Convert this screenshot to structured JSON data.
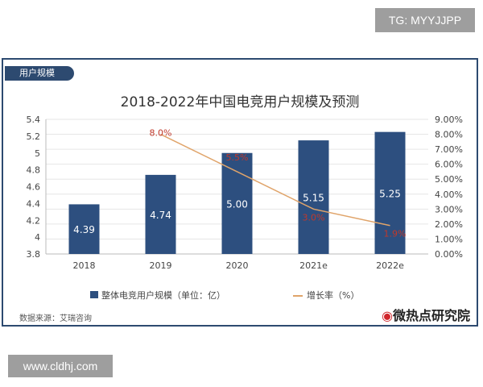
{
  "watermark_top": "TG: MYYJJPP",
  "watermark_bottom": "www.cldhj.com",
  "section_tag": "用户规模",
  "source": "数据来源：艾瑞咨询",
  "logo": "微热点研究院",
  "chart_data": {
    "type": "bar+line",
    "title": "2018-2022年中国电竞用户规模及预测",
    "categories": [
      "2018",
      "2019",
      "2020",
      "2021e",
      "2022e"
    ],
    "series": [
      {
        "name": "整体电竞用户规模（单位：亿）",
        "type": "bar",
        "axis": "left",
        "values": [
          4.39,
          4.74,
          5.0,
          5.15,
          5.25
        ],
        "labels": [
          "4.39",
          "4.74",
          "5.00",
          "5.15",
          "5.25"
        ],
        "color": "#2d4f7f"
      },
      {
        "name": "增长率（%）",
        "type": "line",
        "axis": "right",
        "values": [
          null,
          8.0,
          5.5,
          3.0,
          1.9
        ],
        "labels": [
          "",
          "8.0%",
          "5.5%",
          "3.0%",
          "1.9%"
        ],
        "color": "#e0a46a",
        "label_color": "#c0392b"
      }
    ],
    "left_axis": {
      "ylim": [
        3.8,
        5.4
      ],
      "ticks": [
        "3.8",
        "4",
        "4.2",
        "4.4",
        "4.6",
        "4.8",
        "5",
        "5.2",
        "5.4"
      ]
    },
    "right_axis": {
      "ylim": [
        0,
        9
      ],
      "ticks": [
        "0.00%",
        "1.00%",
        "2.00%",
        "3.00%",
        "4.00%",
        "5.00%",
        "6.00%",
        "7.00%",
        "8.00%",
        "9.00%"
      ]
    },
    "grid": true,
    "legend": "bottom"
  }
}
